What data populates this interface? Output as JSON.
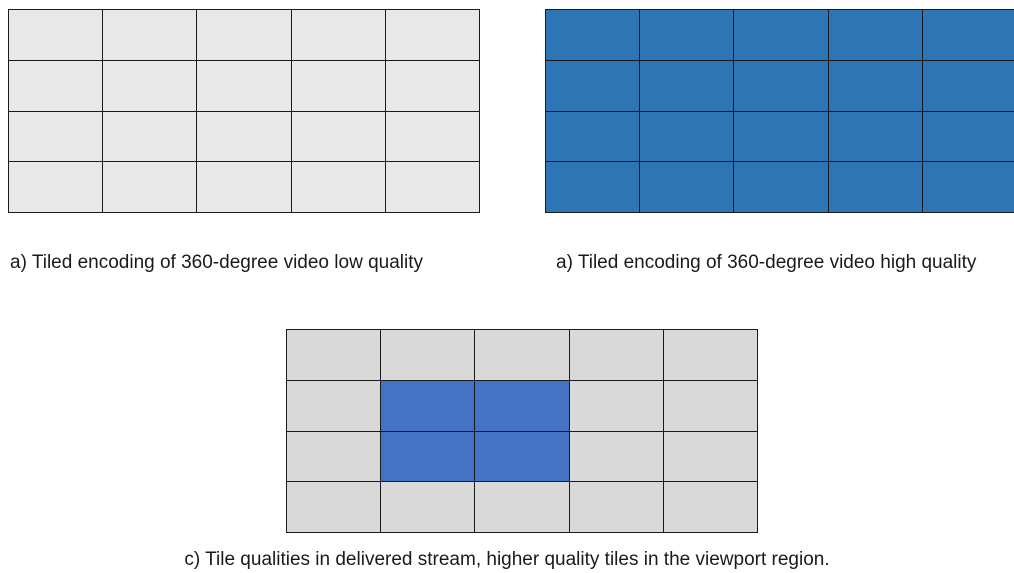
{
  "colors": {
    "low_quality_tile": "#e8e8e8",
    "high_quality_tile": "#2e75b6",
    "delivered_low_tile": "#d9d9d9",
    "delivered_high_tile": "#4472c4",
    "tile_border": "#1a1a1a"
  },
  "grid": {
    "rows": 4,
    "cols": 5
  },
  "panels": {
    "low": {
      "caption": "a) Tiled encoding of 360-degree video low quality"
    },
    "high": {
      "caption": "a) Tiled encoding of 360-degree video high quality"
    },
    "delivered": {
      "caption": "c) Tile qualities in delivered stream, higher quality tiles in the viewport region.",
      "viewport_tiles": [
        [
          1,
          1
        ],
        [
          1,
          2
        ],
        [
          2,
          1
        ],
        [
          2,
          2
        ]
      ]
    }
  }
}
